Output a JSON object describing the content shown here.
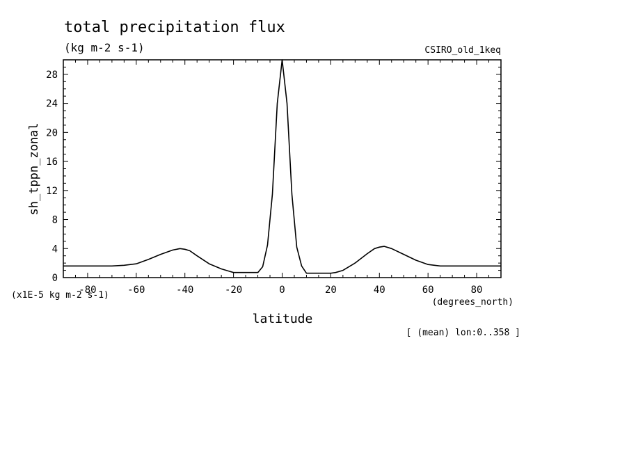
{
  "chart_data": {
    "type": "line",
    "title": "total precipitation flux",
    "subtitle": "(kg m-2 s-1)",
    "dataset_label": "CSIRO_old_1keq",
    "xlabel": "latitude",
    "x_units": "(degrees_north)",
    "ylabel": "sh_tppn_zonal",
    "y_scale_note": "(x1E-5 kg m-2 s-1)",
    "footnote": "[ (mean) lon:0..358 ]",
    "xlim": [
      -90,
      90
    ],
    "ylim": [
      0,
      30
    ],
    "x_ticks": [
      -80,
      -60,
      -40,
      -20,
      0,
      20,
      40,
      60,
      80
    ],
    "y_ticks": [
      0,
      4,
      8,
      12,
      16,
      20,
      24,
      28
    ],
    "grid": false,
    "series": [
      {
        "x": [
          -90,
          -80,
          -70,
          -65,
          -60,
          -55,
          -50,
          -45,
          -42,
          -40,
          -38,
          -35,
          -30,
          -25,
          -22,
          -20,
          -15,
          -10,
          -8,
          -6,
          -4,
          -2,
          0,
          2,
          4,
          6,
          8,
          10,
          15,
          20,
          22,
          25,
          30,
          35,
          38,
          40,
          42,
          45,
          50,
          55,
          60,
          65,
          70,
          80,
          90
        ],
        "y": [
          1.6,
          1.6,
          1.6,
          1.7,
          1.9,
          2.5,
          3.2,
          3.8,
          4.0,
          3.9,
          3.7,
          3.0,
          1.9,
          1.2,
          0.9,
          0.7,
          0.7,
          0.7,
          1.5,
          4.5,
          11.5,
          24.0,
          30.0,
          24.0,
          11.5,
          4.2,
          1.6,
          0.6,
          0.6,
          0.6,
          0.7,
          1.0,
          2.0,
          3.3,
          4.0,
          4.2,
          4.3,
          4.0,
          3.2,
          2.4,
          1.8,
          1.6,
          1.6,
          1.6,
          1.6
        ]
      }
    ]
  }
}
